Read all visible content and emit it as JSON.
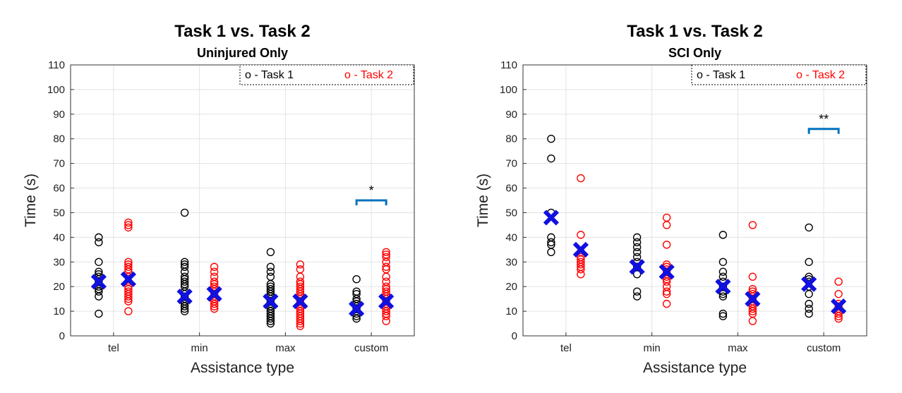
{
  "chart_data": [
    {
      "type": "scatter",
      "title": "Task 1 vs. Task 2",
      "subtitle": "Uninjured Only",
      "xlabel": "Assistance type",
      "ylabel": "Time (s)",
      "categories": [
        "tel",
        "min",
        "max",
        "custom"
      ],
      "ylim": [
        0,
        110
      ],
      "yticks": [
        0,
        10,
        20,
        30,
        40,
        50,
        60,
        70,
        80,
        90,
        100,
        110
      ],
      "grid": true,
      "legend_position": "top-right",
      "colors": {
        "task1": "#000000",
        "task2": "#ff0000",
        "mean": "#1010e0",
        "significance": "#0072bd"
      },
      "series": [
        {
          "name": "o - Task 1",
          "values": [
            [
              40,
              38,
              30,
              26,
              25,
              24,
              23,
              22,
              21,
              20,
              19,
              18,
              16,
              9
            ],
            [
              50,
              30,
              29,
              28,
              26,
              24,
              23,
              22,
              21,
              20,
              18,
              17,
              16,
              15,
              14,
              13,
              12,
              11,
              10
            ],
            [
              34,
              28,
              26,
              24,
              21,
              20,
              19,
              18,
              17,
              16,
              15,
              14,
              13,
              12,
              11,
              10,
              9,
              8,
              7,
              6,
              5
            ],
            [
              23,
              18,
              17,
              15,
              14,
              13,
              12,
              11,
              10,
              9,
              8,
              7
            ]
          ]
        },
        {
          "name": "o - Task 2",
          "values": [
            [
              46,
              45,
              44,
              30,
              29,
              28,
              27,
              26,
              24,
              22,
              20,
              19,
              18,
              17,
              16,
              15,
              14,
              10
            ],
            [
              28,
              26,
              24,
              22,
              21,
              20,
              19,
              18,
              17,
              16,
              15,
              14,
              13,
              12,
              11
            ],
            [
              29,
              27,
              24,
              22,
              21,
              20,
              19,
              18,
              17,
              16,
              15,
              14,
              13,
              12,
              11,
              10,
              9,
              8,
              7,
              6,
              5,
              4
            ],
            [
              34,
              33,
              32,
              30,
              28,
              27,
              24,
              22,
              20,
              19,
              18,
              17,
              16,
              15,
              14,
              13,
              12,
              11,
              10,
              9,
              8,
              6
            ]
          ]
        }
      ],
      "means": {
        "task1": [
          22,
          16,
          14,
          11
        ],
        "task2": [
          23,
          17,
          14,
          14
        ]
      },
      "significance": [
        {
          "category": "custom",
          "label": "*",
          "y": 55
        }
      ]
    },
    {
      "type": "scatter",
      "title": "Task 1 vs. Task 2",
      "subtitle": "SCI Only",
      "xlabel": "Assistance type",
      "ylabel": "Time (s)",
      "categories": [
        "tel",
        "min",
        "max",
        "custom"
      ],
      "ylim": [
        0,
        110
      ],
      "yticks": [
        0,
        10,
        20,
        30,
        40,
        50,
        60,
        70,
        80,
        90,
        100,
        110
      ],
      "grid": true,
      "legend_position": "top-right",
      "colors": {
        "task1": "#000000",
        "task2": "#ff0000",
        "mean": "#1010e0",
        "significance": "#0072bd"
      },
      "series": [
        {
          "name": "o - Task 1",
          "values": [
            [
              80,
              72,
              50,
              40,
              38,
              37,
              34
            ],
            [
              40,
              38,
              36,
              34,
              32,
              30,
              28,
              25,
              18,
              16
            ],
            [
              41,
              30,
              26,
              24,
              22,
              20,
              18,
              17,
              16,
              9,
              8
            ],
            [
              44,
              30,
              24,
              23,
              22,
              20,
              17,
              13,
              11,
              9
            ]
          ]
        },
        {
          "name": "o - Task 2",
          "values": [
            [
              64,
              41,
              34,
              32,
              31,
              30,
              29,
              28,
              27,
              25
            ],
            [
              48,
              45,
              37,
              29,
              28,
              27,
              26,
              25,
              24,
              23,
              22,
              20,
              18,
              17,
              13
            ],
            [
              45,
              24,
              19,
              18,
              17,
              16,
              15,
              14,
              13,
              12,
              11,
              10,
              9,
              6
            ],
            [
              22,
              17,
              13,
              12,
              11,
              10,
              9,
              8,
              7
            ]
          ]
        }
      ],
      "means": {
        "task1": [
          48,
          28,
          20,
          21
        ],
        "task2": [
          35,
          26,
          15,
          12
        ]
      },
      "significance": [
        {
          "category": "custom",
          "label": "**",
          "y": 84
        }
      ]
    }
  ]
}
